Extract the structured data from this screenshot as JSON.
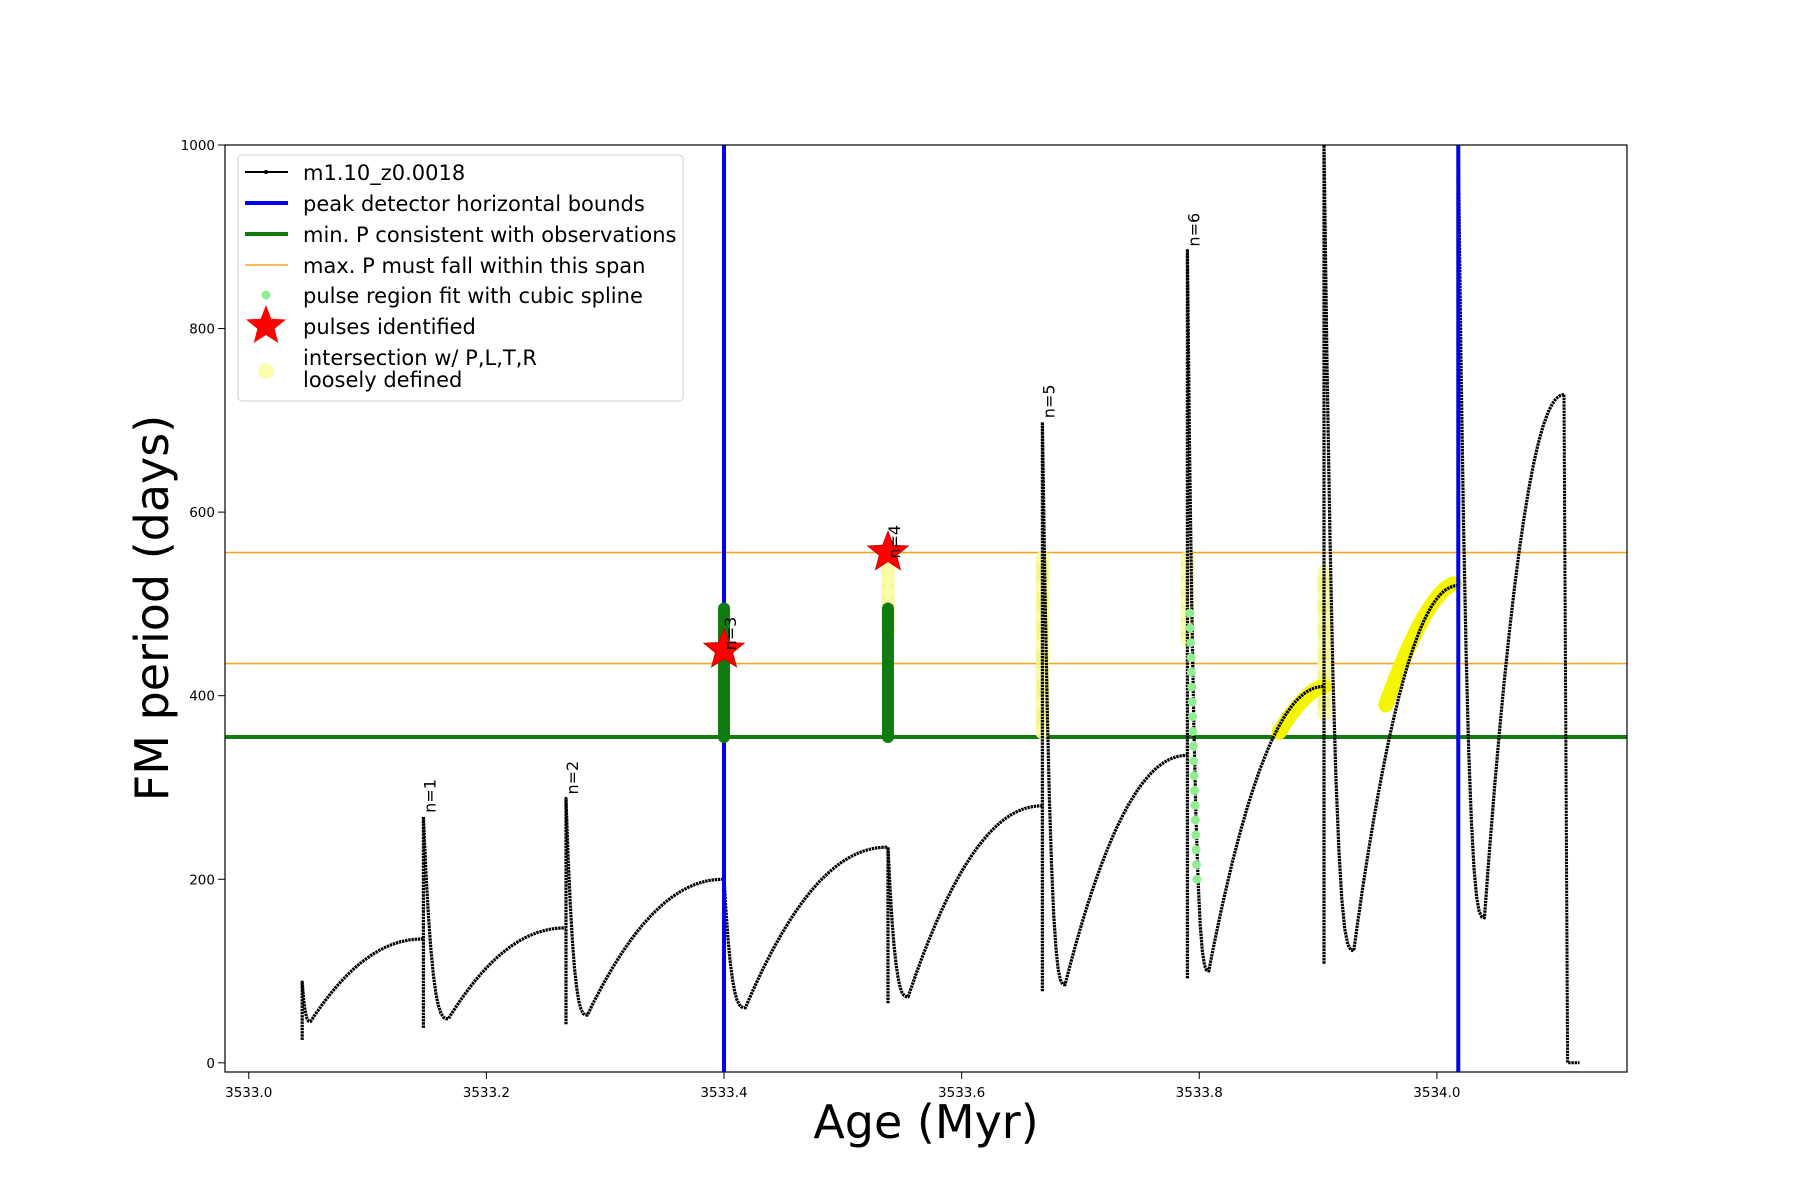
{
  "chart_data": {
    "type": "line",
    "xlabel": "Age (Myr)",
    "ylabel": "FM period (days)",
    "xlim": [
      3532.98,
      3534.16
    ],
    "ylim": [
      -10,
      1000
    ],
    "xticks": [
      3533.0,
      3533.2,
      3533.4,
      3533.6,
      3533.8,
      3534.0
    ],
    "xtick_labels": [
      "3533.0",
      "3533.2",
      "3533.4",
      "3533.6",
      "3533.8",
      "3534.0"
    ],
    "yticks": [
      0,
      200,
      400,
      600,
      800,
      1000
    ],
    "ytick_labels": [
      "0",
      "200",
      "400",
      "600",
      "800",
      "1000"
    ],
    "legend_position": "upper-left",
    "legend": [
      {
        "label": "m1.10_z0.0018",
        "kind": "line-marker",
        "color": "#000000"
      },
      {
        "label": "peak detector horizontal bounds",
        "kind": "line",
        "color": "#0000ee"
      },
      {
        "label": "min. P consistent with observations",
        "kind": "line",
        "color": "#107c10"
      },
      {
        "label": "max. P must fall within this span",
        "kind": "thin-line",
        "color": "#f5a623"
      },
      {
        "label": "pulse region fit with cubic spline",
        "kind": "dot",
        "color": "#90ee90"
      },
      {
        "label": "pulses identified",
        "kind": "star",
        "color": "#ff0000"
      },
      {
        "label": "intersection w/ P,L,T,R",
        "label2": "loosely defined",
        "kind": "dot",
        "color": "#fdfdb0"
      }
    ],
    "series": [
      {
        "name": "m1.10_z0.0018",
        "color": "#000000",
        "cycles": [
          {
            "start": 3533.045,
            "base": 25,
            "startval": 88,
            "min_x": 3533.052,
            "min_y": 45,
            "end": 3533.147,
            "end_y": 135
          },
          {
            "start": 3533.147,
            "base": 38,
            "startval": 268,
            "min_x": 3533.168,
            "min_y": 48,
            "end": 3533.267,
            "end_y": 147
          },
          {
            "start": 3533.267,
            "base": 42,
            "startval": 288,
            "min_x": 3533.285,
            "min_y": 52,
            "end": 3533.4,
            "end_y": 200
          },
          {
            "start": 3533.4,
            "base": 55,
            "startval": 200,
            "min_x": 3533.418,
            "min_y": 60,
            "end": 3533.538,
            "end_y": 235
          },
          {
            "start": 3533.538,
            "base": 65,
            "startval": 235,
            "min_x": 3533.555,
            "min_y": 72,
            "end": 3533.668,
            "end_y": 280
          },
          {
            "start": 3533.668,
            "base": 78,
            "startval": 698,
            "min_x": 3533.687,
            "min_y": 85,
            "end": 3533.79,
            "end_y": 335
          },
          {
            "start": 3533.79,
            "base": 92,
            "startval": 885,
            "min_x": 3533.808,
            "min_y": 100,
            "end": 3533.905,
            "end_y": 410
          },
          {
            "start": 3533.905,
            "base": 108,
            "startval": 1000,
            "min_x": 3533.93,
            "min_y": 122,
            "end": 3534.018,
            "end_y": 520
          },
          {
            "start": 3534.018,
            "base": 125,
            "startval": 1000,
            "min_x": 3534.04,
            "min_y": 158,
            "end": 3534.107,
            "end_y": 728
          }
        ],
        "tail": {
          "x_start": 3534.107,
          "y_start": 728,
          "x_drop": 3534.11,
          "x_end": 3534.12,
          "y_end": 0
        }
      }
    ],
    "vertical_lines": [
      {
        "name": "peak detector horizontal bounds",
        "x": 3533.4,
        "color": "#0000ee"
      },
      {
        "name": "peak detector horizontal bounds",
        "x": 3534.018,
        "color": "#0000ee"
      }
    ],
    "horizontal_lines": [
      {
        "name": "min. P consistent with observations",
        "y": 355,
        "color": "#107c10"
      },
      {
        "name": "max. P must fall within this span",
        "y": 435,
        "color": "#f5a623"
      },
      {
        "name": "max. P must fall within this span",
        "y": 556,
        "color": "#f5a623"
      }
    ],
    "pulse_labels": [
      {
        "text": "n=1",
        "x": 3533.147,
        "y": 268
      },
      {
        "text": "n=2",
        "x": 3533.267,
        "y": 288
      },
      {
        "text": "n=3",
        "x": 3533.4,
        "y": 445
      },
      {
        "text": "n=4",
        "x": 3533.538,
        "y": 545
      },
      {
        "text": "n=5",
        "x": 3533.668,
        "y": 698
      },
      {
        "text": "n=6",
        "x": 3533.79,
        "y": 885
      }
    ],
    "pulses_identified": [
      {
        "x": 3533.4,
        "y": 450
      },
      {
        "x": 3533.538,
        "y": 556
      }
    ],
    "green_fit_regions": [
      {
        "x": 3533.4,
        "y_from": 355,
        "y_to": 495
      },
      {
        "x": 3533.538,
        "y_from": 355,
        "y_to": 495
      }
    ],
    "lightgreen_fit_region": {
      "x_from": 3533.792,
      "x_to": 3533.798,
      "y_from": 490,
      "y_to": 200
    },
    "yellow_regions": [
      {
        "kind": "vertical",
        "x": 3533.538,
        "y_from": 470,
        "y_to": 556
      },
      {
        "kind": "vertical",
        "x": 3533.668,
        "y_from": 360,
        "y_to": 550
      },
      {
        "kind": "vertical",
        "x": 3533.79,
        "y_from": 460,
        "y_to": 550
      },
      {
        "kind": "vertical",
        "x": 3533.905,
        "y_from": 380,
        "y_to": 535
      },
      {
        "kind": "curve",
        "x_from": 3533.867,
        "x_to": 3533.905,
        "y_from": 360,
        "y_to": 410
      },
      {
        "kind": "curve",
        "x_from": 3533.957,
        "x_to": 3534.015,
        "y_from": 390,
        "y_to": 522
      }
    ]
  }
}
